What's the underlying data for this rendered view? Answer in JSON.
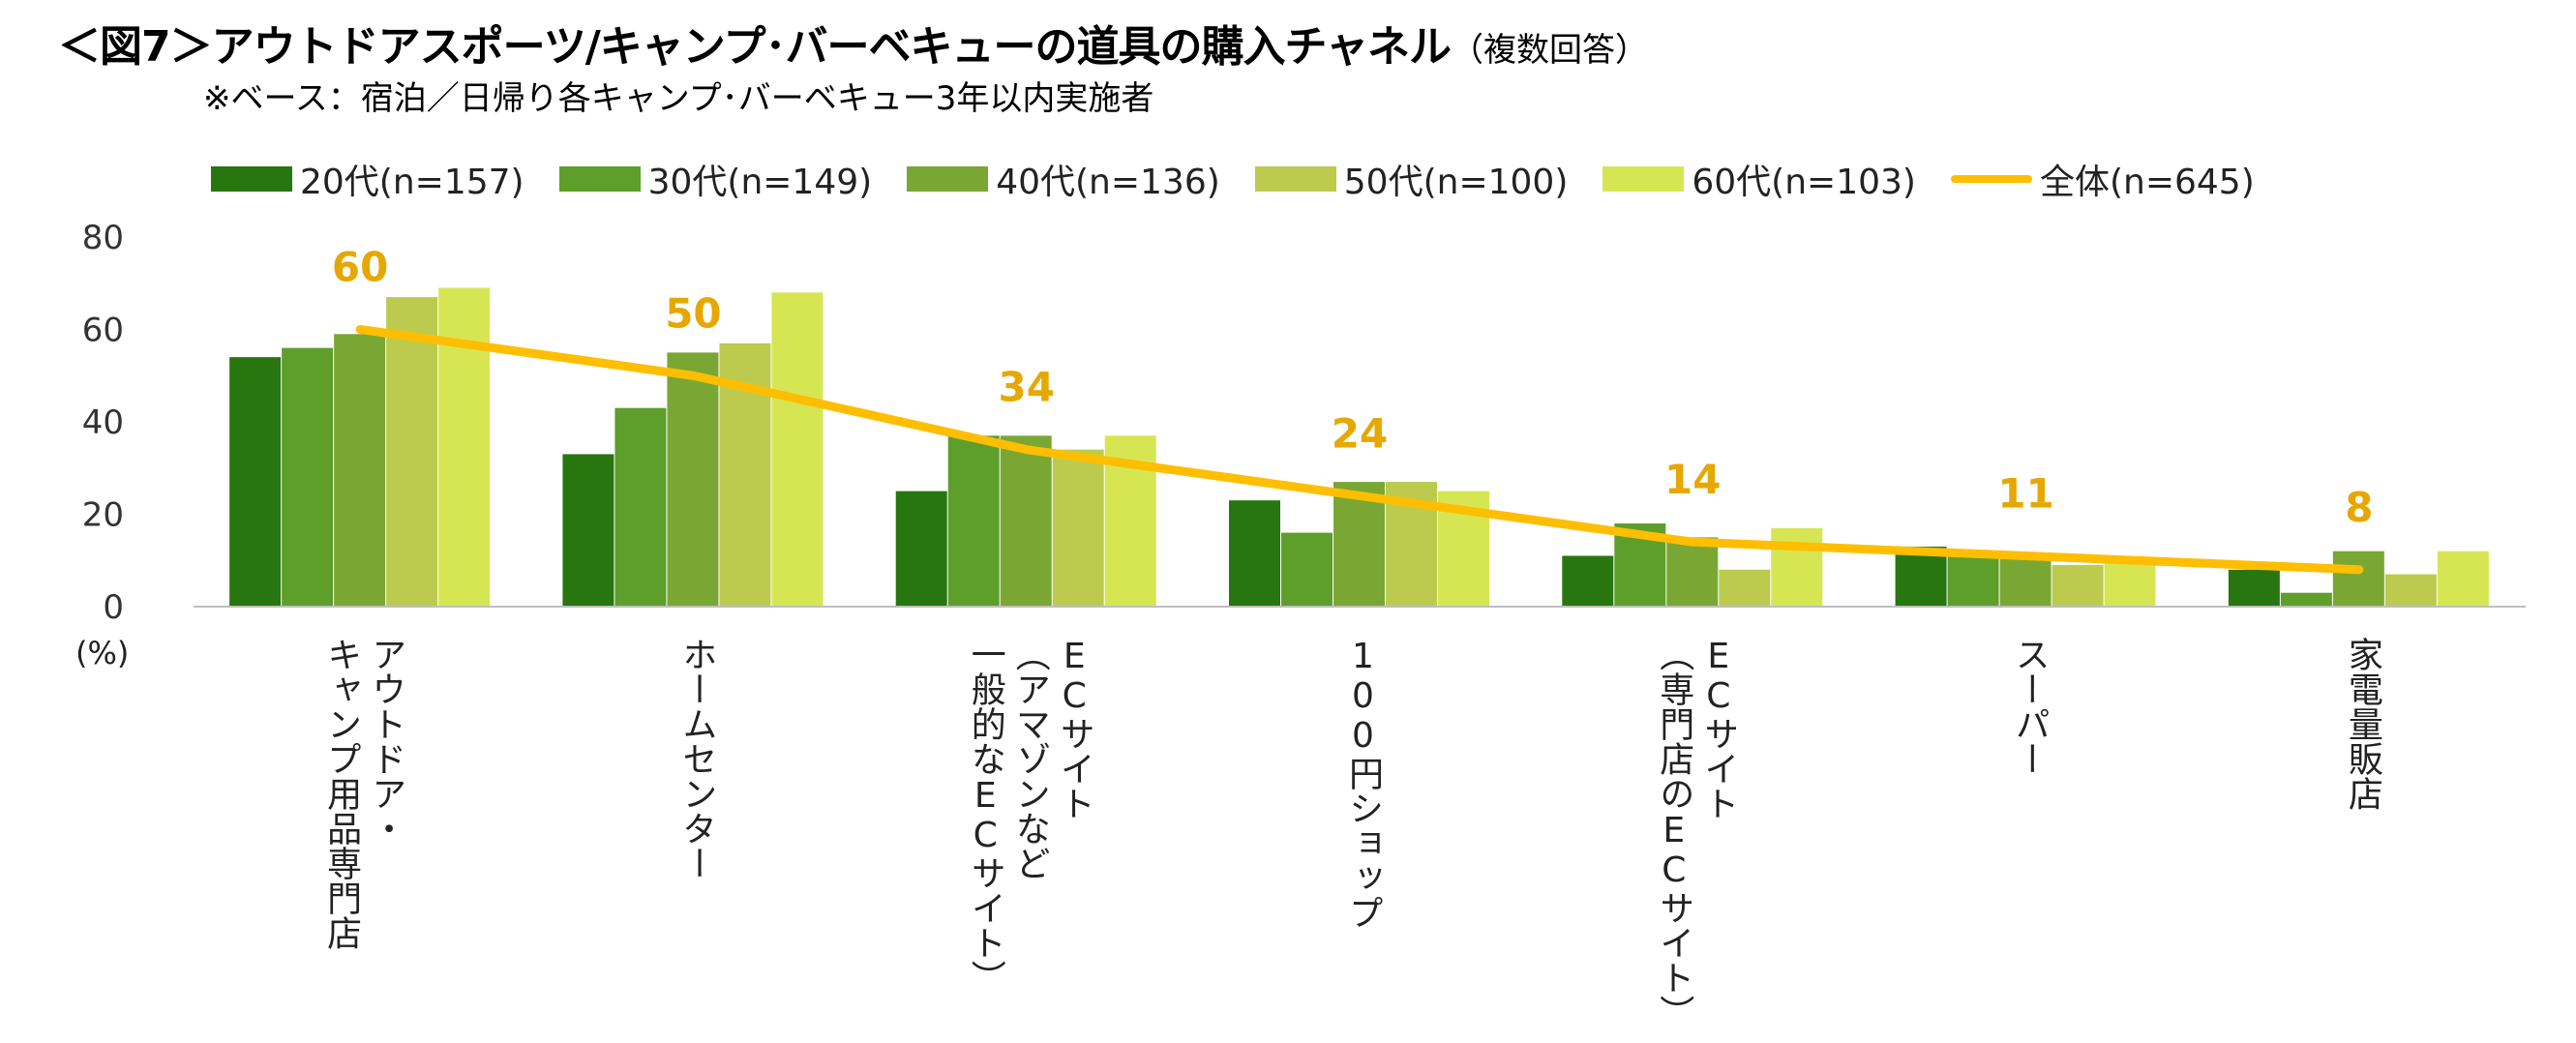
{
  "title": "＜図7＞アウトドアスポーツ/キャンプ･バーベキューの道具の購入チャネル",
  "title_note": "（複数回答）",
  "subtitle": "※ベース：宿泊／日帰り各キャンプ･バーベキュー3年以内実施者",
  "colors": {
    "20s": "#27760f",
    "30s": "#5e9e2a",
    "40s": "#7aa733",
    "50s": "#bccb4d",
    "60s": "#d6e653",
    "total": "#ffbe00",
    "total_label": "#e6a800",
    "axis": "#bfbfbf"
  },
  "legend": {
    "s20": "20代(n=157)",
    "s30": "30代(n=149)",
    "s40": "40代(n=136)",
    "s50": "50代(n=100)",
    "s60": "60代(n=103)",
    "total": "全体(n=645)"
  },
  "unit_label": "(%)",
  "category_labels": [
    [
      "アウトドア・",
      "キャンプ用品専門店"
    ],
    [
      "ホームセンター"
    ],
    [
      "ECサイト",
      "（アマゾンなど",
      "一般的なECサイト）"
    ],
    [
      "100円ショップ"
    ],
    [
      "ECサイト",
      "（専門店のECサイト）"
    ],
    [
      "スーパー"
    ],
    [
      "家電量販店"
    ]
  ],
  "chart_data": {
    "type": "bar",
    "categories": [
      "アウトドア・キャンプ用品専門店",
      "ホームセンター",
      "ECサイト（アマゾンなど一般的なECサイト）",
      "100円ショップ",
      "ECサイト（専門店のECサイト）",
      "スーパー",
      "家電量販店"
    ],
    "series": [
      {
        "name": "20代(n=157)",
        "type": "bar",
        "values": [
          54,
          33,
          25,
          23,
          11,
          13,
          8
        ]
      },
      {
        "name": "30代(n=149)",
        "type": "bar",
        "values": [
          56,
          43,
          37,
          16,
          18,
          11,
          3
        ]
      },
      {
        "name": "40代(n=136)",
        "type": "bar",
        "values": [
          59,
          55,
          37,
          27,
          15,
          11,
          12
        ]
      },
      {
        "name": "50代(n=100)",
        "type": "bar",
        "values": [
          67,
          57,
          34,
          27,
          8,
          9,
          7
        ]
      },
      {
        "name": "60代(n=103)",
        "type": "bar",
        "values": [
          69,
          68,
          37,
          25,
          17,
          10,
          12
        ]
      },
      {
        "name": "全体(n=645)",
        "type": "line",
        "values": [
          60,
          50,
          34,
          24,
          14,
          11,
          8
        ]
      }
    ],
    "total_labels": [
      "60",
      "50",
      "34",
      "24",
      "14",
      "11",
      "8"
    ],
    "ylim": [
      0,
      80
    ],
    "yticks": [
      "0",
      "20",
      "40",
      "60",
      "80"
    ],
    "xlabel": "",
    "ylabel": "(%)",
    "legend_position": "top",
    "grid": false
  }
}
